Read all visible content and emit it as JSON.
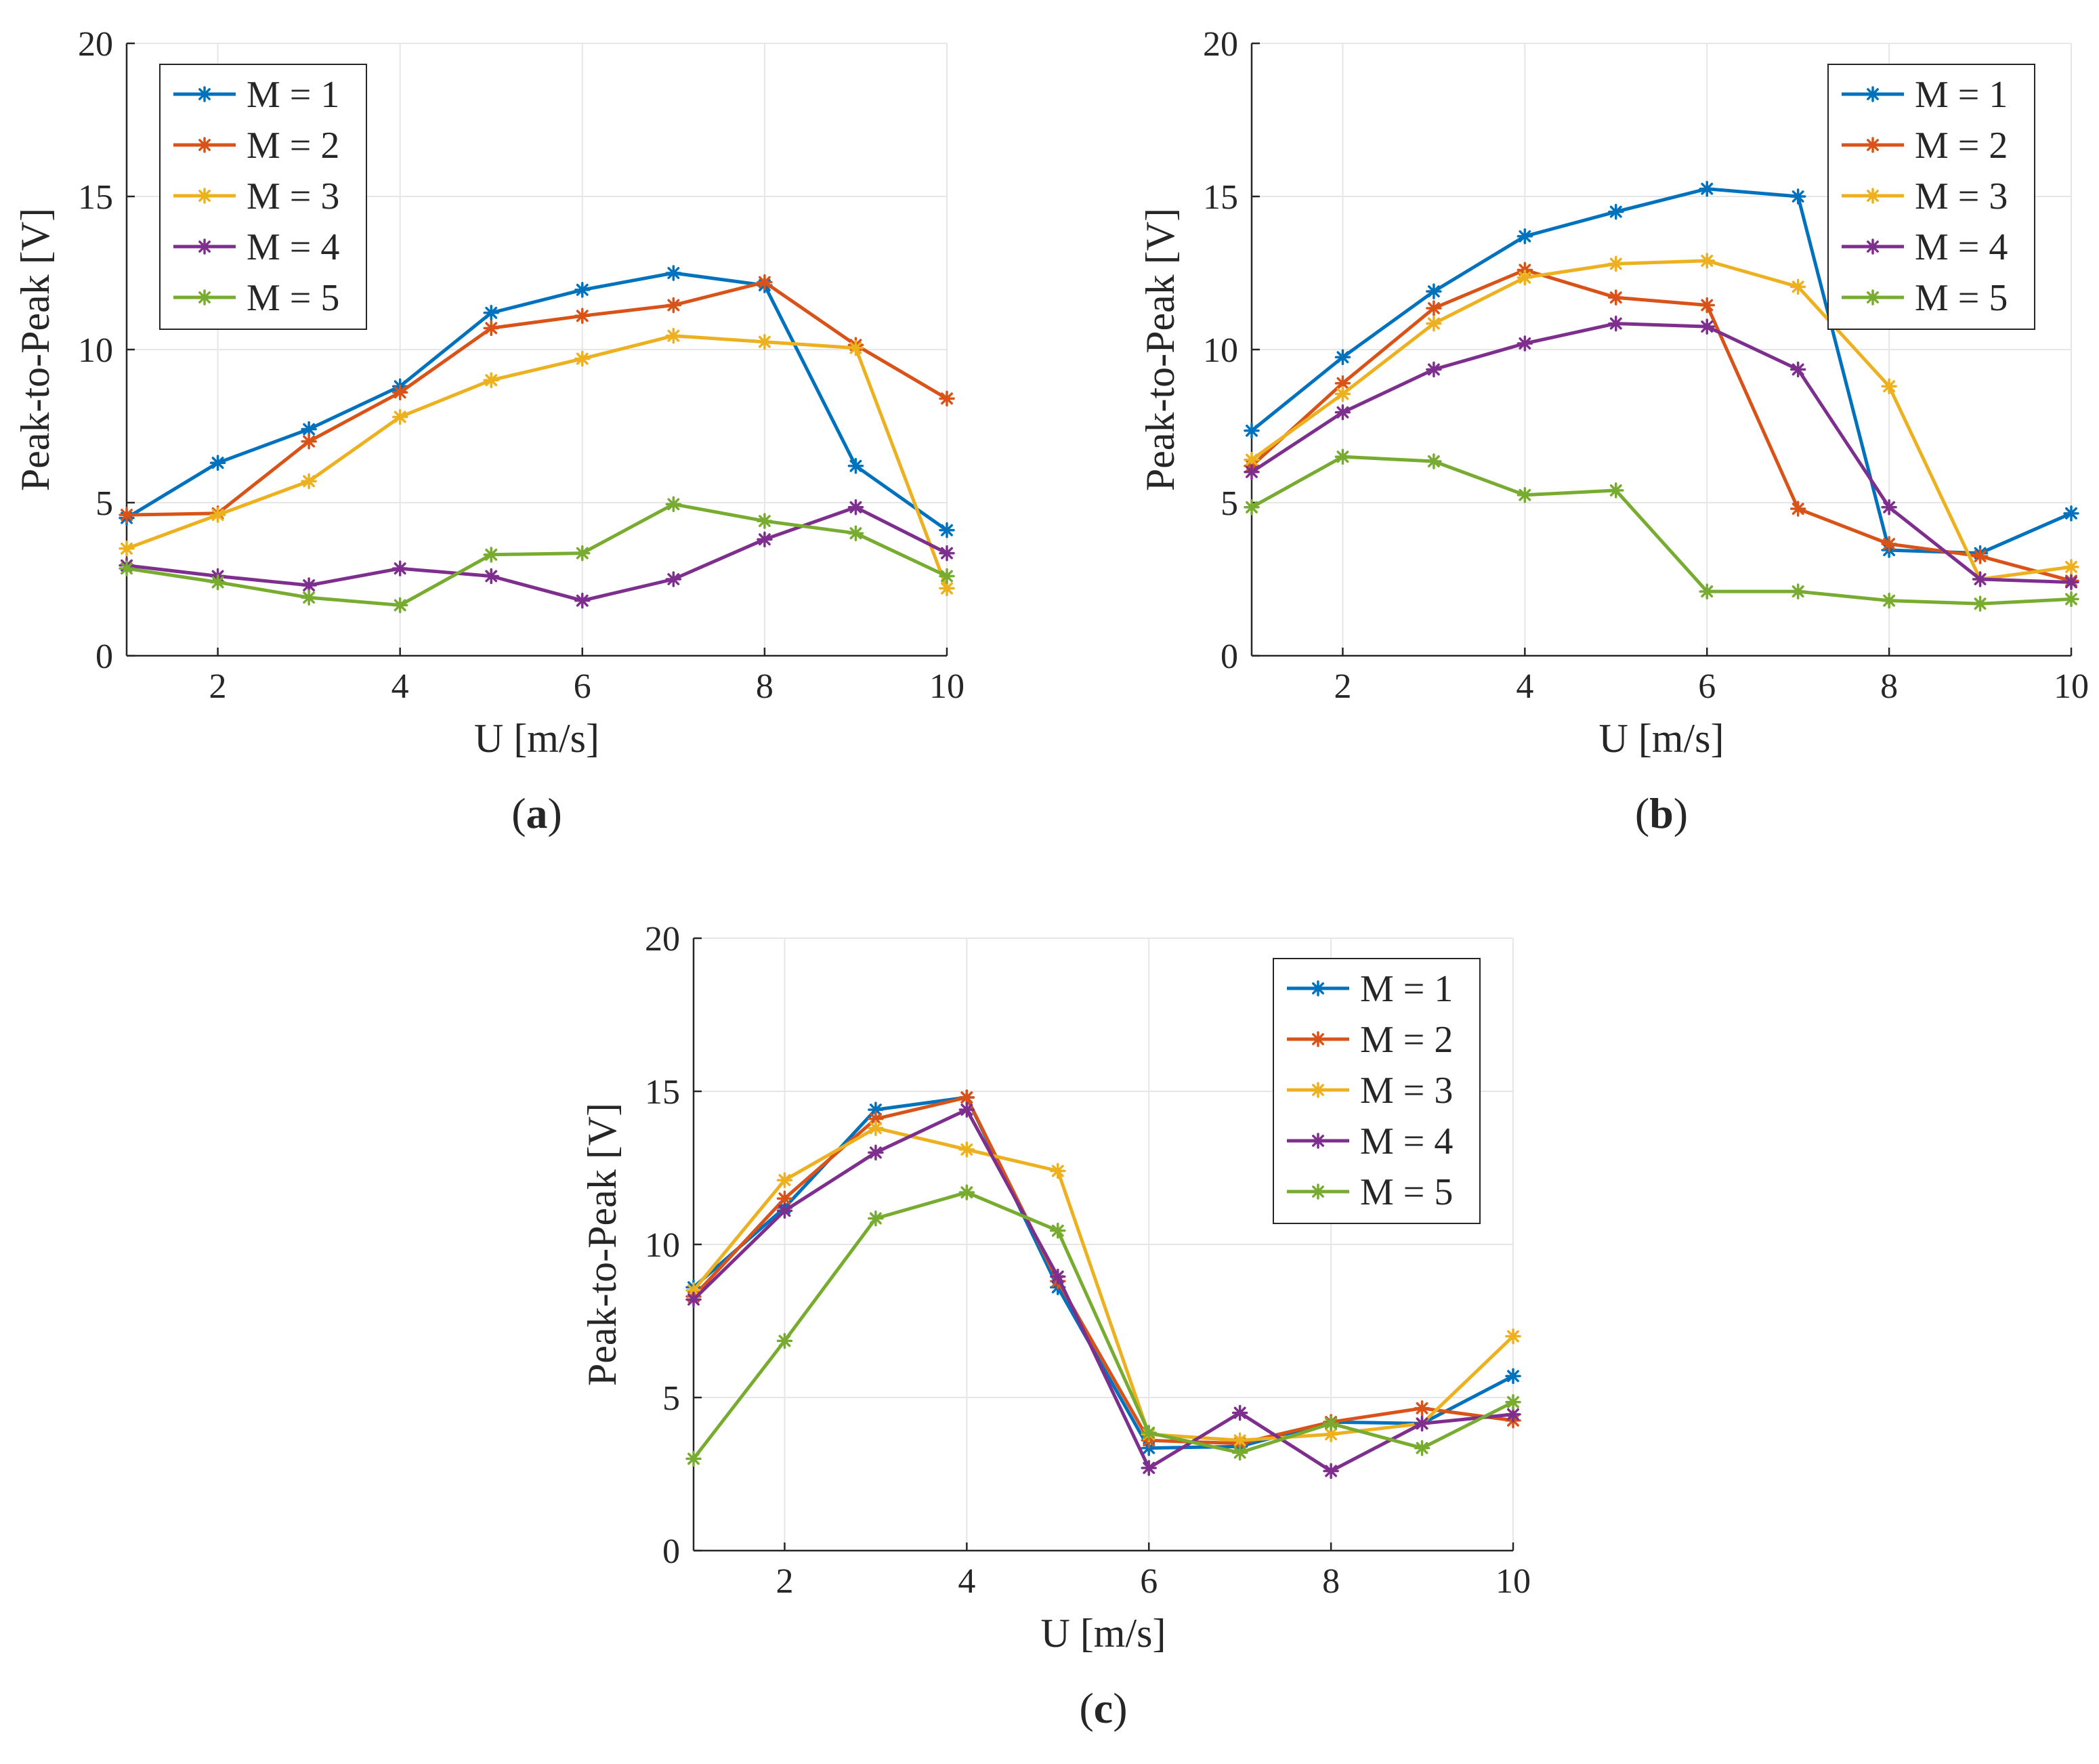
{
  "figure": {
    "colors": [
      "#0072BD",
      "#D95319",
      "#EDB120",
      "#7E2F8E",
      "#77AC30"
    ]
  },
  "chart_data": [
    {
      "type": "line",
      "panel_label": "(a)",
      "xlabel": "U [m/s]",
      "ylabel": "Peak-to-Peak [V]",
      "xlim": [
        1,
        10
      ],
      "ylim": [
        0,
        20
      ],
      "xticks": [
        2,
        4,
        6,
        8,
        10
      ],
      "yticks": [
        0,
        5,
        10,
        15,
        20
      ],
      "grid": true,
      "legend_position": "top-left",
      "x": [
        1,
        2,
        3,
        4,
        5,
        6,
        7,
        8,
        9,
        10
      ],
      "series": [
        {
          "name": "M = 1",
          "values": [
            4.5,
            6.3,
            7.4,
            8.8,
            11.2,
            11.95,
            12.5,
            12.1,
            6.2,
            4.1
          ]
        },
        {
          "name": "M = 2",
          "values": [
            4.6,
            4.65,
            7.0,
            8.6,
            10.7,
            11.1,
            11.45,
            12.2,
            10.15,
            8.4
          ]
        },
        {
          "name": "M = 3",
          "values": [
            3.5,
            4.6,
            5.7,
            7.8,
            9.0,
            9.7,
            10.45,
            10.25,
            10.05,
            2.2
          ]
        },
        {
          "name": "M = 4",
          "values": [
            2.95,
            2.6,
            2.3,
            2.85,
            2.6,
            1.8,
            2.5,
            3.8,
            4.85,
            3.35
          ]
        },
        {
          "name": "M = 5",
          "values": [
            2.85,
            2.4,
            1.9,
            1.65,
            3.3,
            3.35,
            4.95,
            4.4,
            4.0,
            2.6
          ]
        }
      ]
    },
    {
      "type": "line",
      "panel_label": "(b)",
      "xlabel": "U [m/s]",
      "ylabel": "Peak-to-Peak [V]",
      "xlim": [
        1,
        10
      ],
      "ylim": [
        0,
        20
      ],
      "xticks": [
        2,
        4,
        6,
        8,
        10
      ],
      "yticks": [
        0,
        5,
        10,
        15,
        20
      ],
      "grid": true,
      "legend_position": "top-right",
      "x": [
        1,
        2,
        3,
        4,
        5,
        6,
        7,
        8,
        9,
        10
      ],
      "series": [
        {
          "name": "M = 1",
          "values": [
            7.35,
            9.75,
            11.9,
            13.7,
            14.5,
            15.25,
            15.0,
            3.45,
            3.35,
            4.65
          ]
        },
        {
          "name": "M = 2",
          "values": [
            6.2,
            8.9,
            11.35,
            12.6,
            11.7,
            11.45,
            4.8,
            3.65,
            3.25,
            2.45
          ]
        },
        {
          "name": "M = 3",
          "values": [
            6.4,
            8.55,
            10.85,
            12.35,
            12.8,
            12.9,
            12.05,
            8.8,
            2.5,
            2.9
          ]
        },
        {
          "name": "M = 4",
          "values": [
            6.0,
            7.95,
            9.35,
            10.2,
            10.85,
            10.75,
            9.35,
            4.85,
            2.5,
            2.4
          ]
        },
        {
          "name": "M = 5",
          "values": [
            4.85,
            6.5,
            6.35,
            5.25,
            5.4,
            2.1,
            2.1,
            1.8,
            1.7,
            1.85
          ]
        }
      ]
    },
    {
      "type": "line",
      "panel_label": "(c)",
      "xlabel": "U [m/s]",
      "ylabel": "Peak-to-Peak [V]",
      "xlim": [
        1,
        10
      ],
      "ylim": [
        0,
        20
      ],
      "xticks": [
        2,
        4,
        6,
        8,
        10
      ],
      "yticks": [
        0,
        5,
        10,
        15,
        20
      ],
      "grid": true,
      "legend_position": "top-right",
      "x": [
        1,
        2,
        3,
        4,
        5,
        6,
        7,
        8,
        9,
        10
      ],
      "series": [
        {
          "name": "M = 1",
          "values": [
            8.6,
            11.2,
            14.4,
            14.8,
            8.6,
            3.35,
            3.4,
            4.2,
            4.15,
            5.7
          ]
        },
        {
          "name": "M = 2",
          "values": [
            8.3,
            11.5,
            14.1,
            14.8,
            8.8,
            3.6,
            3.5,
            4.2,
            4.65,
            4.25
          ]
        },
        {
          "name": "M = 3",
          "values": [
            8.5,
            12.1,
            13.8,
            13.1,
            12.4,
            3.8,
            3.6,
            3.8,
            4.15,
            7.0
          ]
        },
        {
          "name": "M = 4",
          "values": [
            8.2,
            11.1,
            13.0,
            14.4,
            8.95,
            2.7,
            4.5,
            2.6,
            4.15,
            4.45
          ]
        },
        {
          "name": "M = 5",
          "values": [
            3.0,
            6.85,
            10.85,
            11.7,
            10.45,
            3.85,
            3.2,
            4.15,
            3.35,
            4.85
          ]
        }
      ]
    }
  ]
}
